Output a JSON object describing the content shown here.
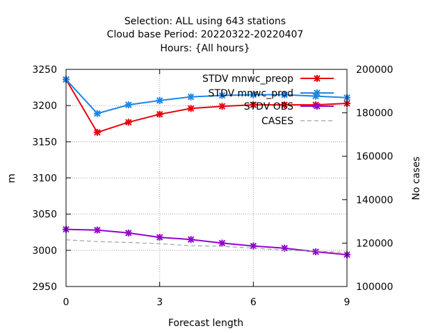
{
  "chart_data": {
    "type": "line",
    "title_lines": [
      "Selection: ALL using   643 stations",
      "Cloud base   Period: 20220322-20220407",
      "Hours: {All hours}"
    ],
    "xlabel": "Forecast length",
    "ylabel": "m",
    "y2label": "No cases",
    "xlim": [
      0,
      9
    ],
    "ylim": [
      2950,
      3250
    ],
    "y2lim": [
      100000,
      200000
    ],
    "xticks": [
      "0",
      "3",
      "6",
      "9"
    ],
    "yticks": [
      "2950",
      "3000",
      "3050",
      "3100",
      "3150",
      "3200",
      "3250"
    ],
    "y2ticks": [
      "100000",
      "120000",
      "140000",
      "160000",
      "180000",
      "200000"
    ],
    "grid": true,
    "legend_position": "top-right",
    "x": [
      0,
      1,
      2,
      3,
      4,
      5,
      6,
      7,
      8,
      9
    ],
    "series": [
      {
        "name": "STDV mnwc_preop",
        "color": "#e8000b",
        "axis": "y",
        "values": [
          3236,
          3163,
          3177,
          3188,
          3196,
          3199,
          3201,
          3201,
          3201,
          3203
        ]
      },
      {
        "name": "STDV mnwc_prod",
        "color": "#1a86e8",
        "axis": "y",
        "values": [
          3236,
          3189,
          3201,
          3207,
          3212,
          3214,
          3215,
          3215,
          3213,
          3211
        ]
      },
      {
        "name": "STDV OBS",
        "color": "#9400d3",
        "axis": "y",
        "values": [
          3029,
          3028,
          3024,
          3018,
          3015,
          3010,
          3006,
          3003,
          2998,
          2994
        ]
      },
      {
        "name": "CASES",
        "color": "#a0a0a0",
        "axis": "y2",
        "dashed": true,
        "values": [
          121500,
          120700,
          120300,
          119700,
          118800,
          118500,
          117700,
          116700,
          116300,
          115700
        ]
      }
    ]
  }
}
